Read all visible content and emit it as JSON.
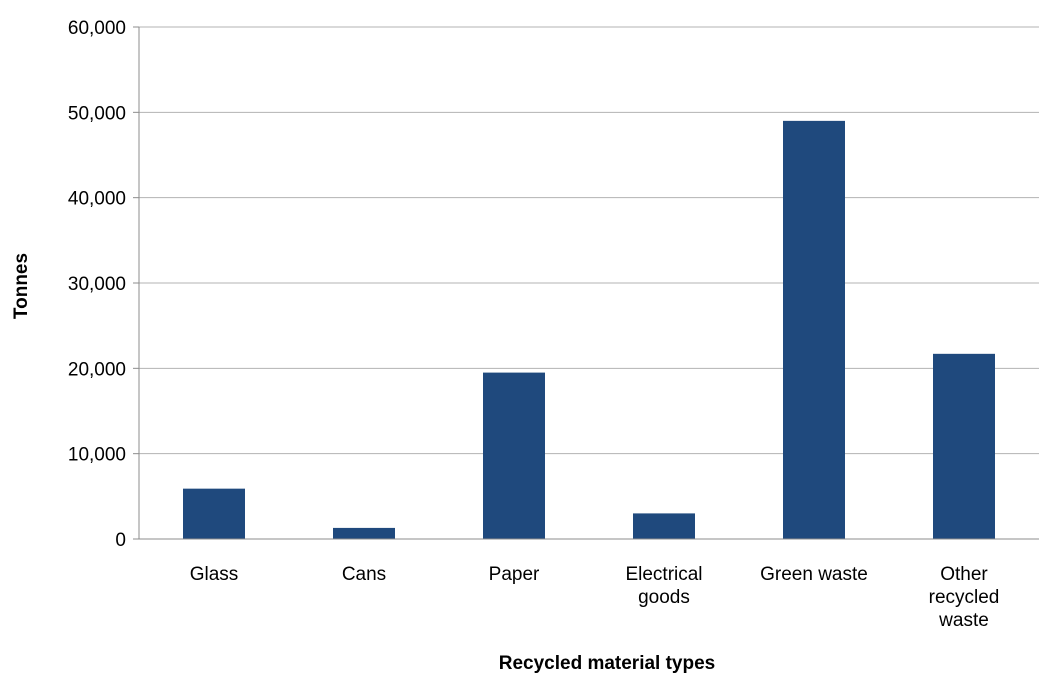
{
  "chart_data": {
    "type": "bar",
    "categories": [
      [
        "Glass"
      ],
      [
        "Cans"
      ],
      [
        "Paper"
      ],
      [
        "Electrical",
        "goods"
      ],
      [
        "Green waste"
      ],
      [
        "Other",
        "recycled",
        "waste"
      ]
    ],
    "values": [
      5900,
      1300,
      19500,
      3000,
      49000,
      21700
    ],
    "xlabel": "Recycled material types",
    "ylabel": "Tonnes",
    "ylim": [
      0,
      60000
    ],
    "yticks": [
      0,
      10000,
      20000,
      30000,
      40000,
      50000,
      60000
    ],
    "ytick_labels": [
      "0",
      "10,000",
      "20,000",
      "30,000",
      "40,000",
      "50,000",
      "60,000"
    ],
    "grid": true,
    "legend": "none",
    "bar_color": "#1f497d",
    "grid_color": "#b3b3b3"
  }
}
